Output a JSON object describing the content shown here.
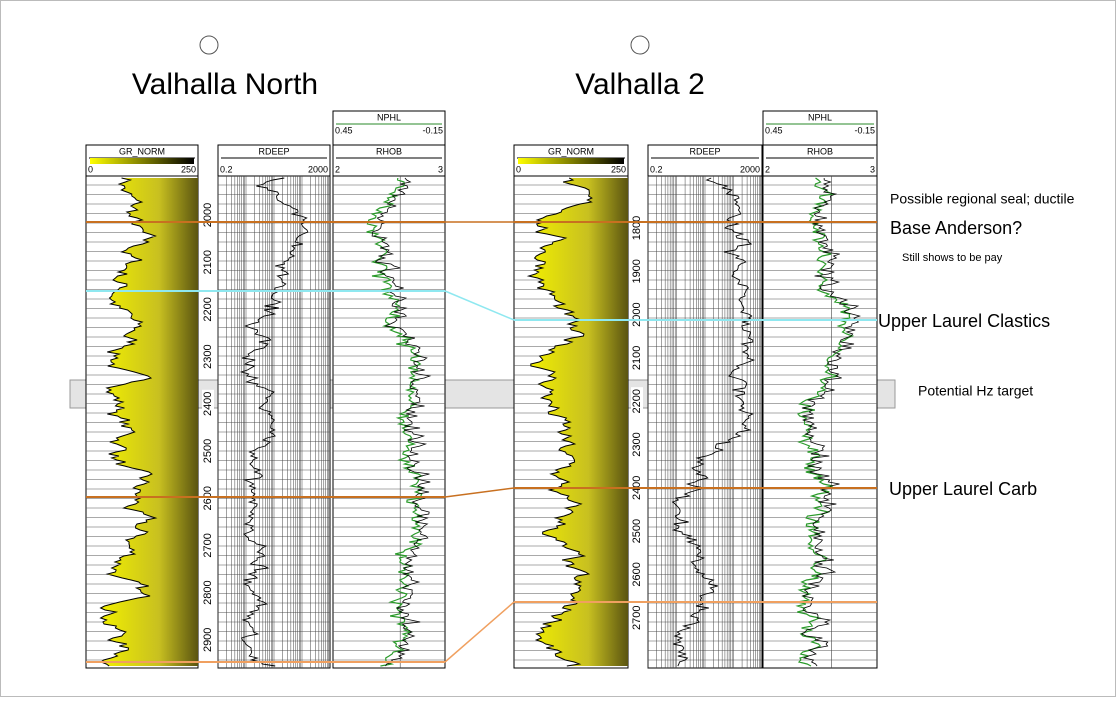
{
  "wells": [
    {
      "title": "Valhalla North",
      "tracks": [
        {
          "name": "GR_NORM",
          "left": "0",
          "right": "250"
        },
        {
          "name": "RDEEP",
          "left": "0.2",
          "right": "2000"
        },
        {
          "name": "NPHL",
          "left": "0.45",
          "right": "-0.15"
        },
        {
          "name": "RHOB",
          "left": "2",
          "right": "3"
        }
      ],
      "depths": [
        2000,
        2100,
        2200,
        2300,
        2400,
        2500,
        2600,
        2700,
        2800,
        2900
      ]
    },
    {
      "title": "Valhalla 2",
      "tracks": [
        {
          "name": "GR_NORM",
          "left": "0",
          "right": "250"
        },
        {
          "name": "RDEEP",
          "left": "0.2",
          "right": "2000"
        },
        {
          "name": "NPHL",
          "left": "0.45",
          "right": "-0.15"
        },
        {
          "name": "RHOB",
          "left": "2",
          "right": "3"
        }
      ],
      "depths": [
        1800,
        1900,
        2000,
        2100,
        2200,
        2300,
        2400,
        2500,
        2600,
        2700
      ]
    }
  ],
  "annotations": [
    "Possible regional seal; ductile",
    "Base Anderson?",
    "Still shows to be pay",
    "Upper Laurel Clastics",
    "Potential Hz target",
    "Upper Laurel Carb"
  ]
}
